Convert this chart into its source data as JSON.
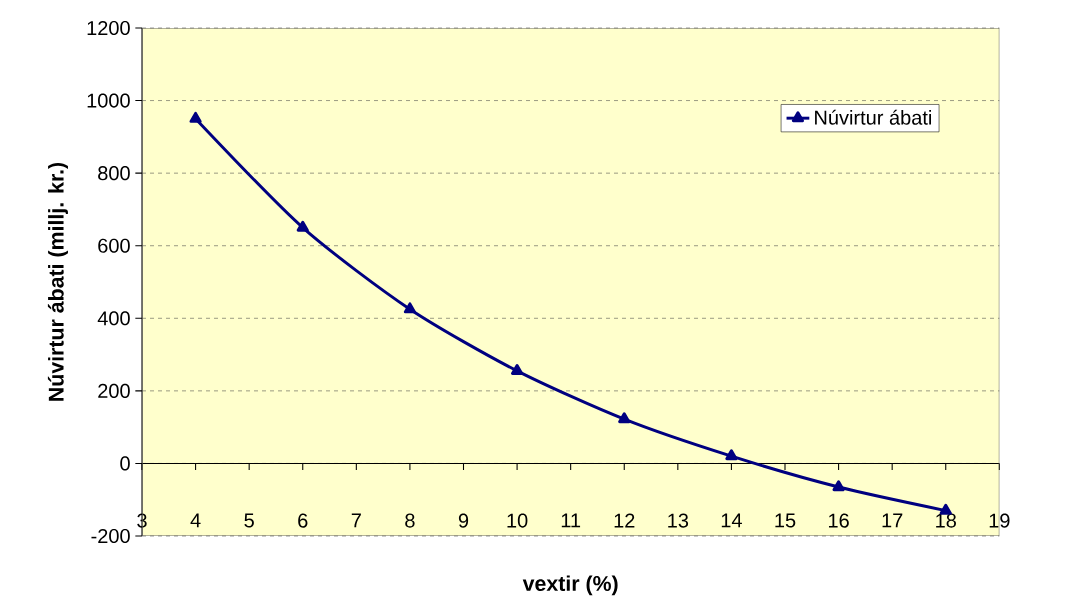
{
  "chart_data": {
    "type": "line",
    "xlabel": "vextir (%)",
    "ylabel": "Núvirtur ábati (millj. kr.)",
    "x": [
      4,
      6,
      8,
      10,
      12,
      14,
      16,
      18
    ],
    "series": [
      {
        "name": "Núvirtur ábati",
        "color": "#000080",
        "values": [
          950,
          650,
          425,
          255,
          122,
          20,
          -65,
          -130
        ]
      }
    ],
    "xlim": [
      3,
      19
    ],
    "xticks": [
      3,
      4,
      5,
      6,
      7,
      8,
      9,
      10,
      11,
      12,
      13,
      14,
      15,
      16,
      17,
      18,
      19
    ],
    "ylim": [
      -200,
      1200
    ],
    "yticks": [
      -200,
      0,
      200,
      400,
      600,
      800,
      1000,
      1200
    ],
    "grid": "y",
    "legend": "top right",
    "marker": "triangle",
    "line_style": "solid"
  }
}
